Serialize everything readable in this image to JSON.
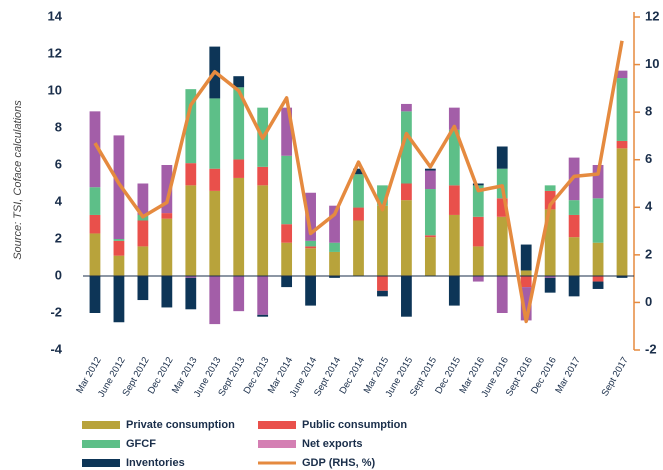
{
  "chart_data": {
    "type": "bar",
    "stacked": true,
    "y_label": "Source: TSI, Coface calculations",
    "categories": [
      "Mar 2012",
      "June 2012",
      "Sept 2012",
      "Dec 2012",
      "Mar 2013",
      "June 2013",
      "Sept 2013",
      "Dec 2013",
      "Mar 2014",
      "June 2014",
      "Sept 2014",
      "Dec 2014",
      "Mar 2015",
      "June 2015",
      "Sept 2015",
      "Dec 2015",
      "Mar 2016",
      "June 2016",
      "Sept 2016",
      "Dec 2016",
      "Mar 2017",
      null,
      "Sept 2017"
    ],
    "series": [
      {
        "name": "Private consumption",
        "color": "#b8a33b",
        "values": [
          2.3,
          1.1,
          1.6,
          3.1,
          4.9,
          4.6,
          5.3,
          4.9,
          1.8,
          1.5,
          1.3,
          3.0,
          3.8,
          4.1,
          2.1,
          3.3,
          1.6,
          3.2,
          0.3,
          3.6,
          2.1,
          1.8,
          6.9
        ]
      },
      {
        "name": "Public consumption",
        "color": "#e9504b",
        "values": [
          1.0,
          0.8,
          1.4,
          0.3,
          1.2,
          1.2,
          1.0,
          1.0,
          1.0,
          0.1,
          0,
          0.7,
          -0.8,
          0.9,
          0.1,
          1.6,
          1.6,
          1.0,
          -0.6,
          1.0,
          1.2,
          -0.3,
          0.4
        ]
      },
      {
        "name": "GFCF",
        "color": "#5dbf88",
        "values": [
          1.5,
          0.1,
          0.3,
          0,
          4.0,
          3.8,
          3.9,
          3.2,
          3.7,
          0.3,
          0.5,
          1.8,
          1.1,
          3.9,
          2.5,
          3.0,
          1.7,
          1.6,
          0,
          0.3,
          0.8,
          2.4,
          3.4
        ]
      },
      {
        "name": "Net exports",
        "color": "#a35ea8",
        "legend_color": "#d47fb3",
        "values": [
          4.1,
          5.6,
          1.7,
          2.6,
          -0.1,
          -2.6,
          -1.9,
          -2.1,
          2.6,
          2.6,
          2.0,
          0,
          0,
          0.4,
          1.0,
          1.2,
          -0.3,
          -2.0,
          -1.8,
          -0.1,
          2.3,
          1.8,
          0.4
        ]
      },
      {
        "name": "Inventories",
        "color": "#0d3557",
        "values": [
          -2.0,
          -2.5,
          -1.3,
          -1.7,
          -1.7,
          2.8,
          0.6,
          -0.1,
          -0.6,
          -1.6,
          -0.1,
          0.3,
          -0.3,
          -2.2,
          0.1,
          -1.6,
          0.1,
          1.2,
          1.4,
          -0.8,
          -1.1,
          -0.4,
          -0.1
        ]
      },
      {
        "name": "GDP (RHS, %)",
        "color": "#e58a3f",
        "type": "line",
        "axis": "y2",
        "values": [
          6.7,
          5.0,
          3.6,
          4.2,
          8.3,
          9.7,
          8.9,
          6.9,
          8.6,
          2.9,
          3.7,
          5.9,
          3.9,
          7.1,
          5.7,
          7.4,
          4.7,
          4.9,
          -0.8,
          4.1,
          5.3,
          5.4,
          11.0
        ]
      }
    ],
    "ylim": [
      -4,
      14
    ],
    "yticks": [
      -4,
      -2,
      0,
      2,
      4,
      6,
      8,
      10,
      12,
      14
    ],
    "y2lim": [
      -2,
      12
    ],
    "y2ticks": [
      -2,
      0,
      2,
      4,
      6,
      8,
      10,
      12
    ],
    "legend": "bottom"
  }
}
